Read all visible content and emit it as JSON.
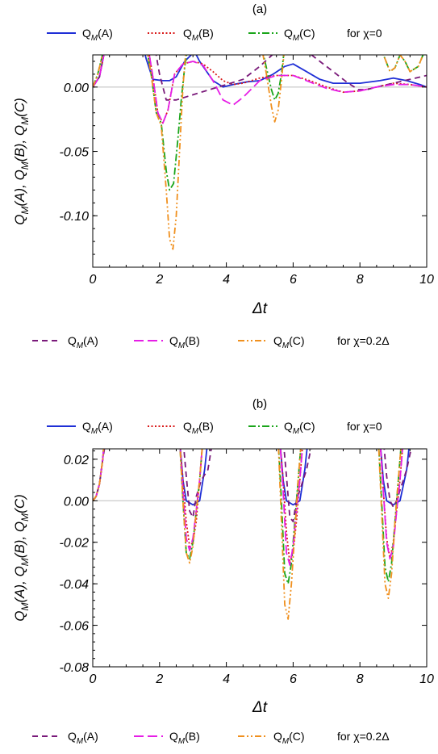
{
  "figure": {
    "legend_top": [
      {
        "label_main": "Q",
        "label_sub": "M",
        "label_tail": "(A)",
        "color": "#1f2fd6",
        "dash": "solid"
      },
      {
        "label_main": "Q",
        "label_sub": "M",
        "label_tail": "(B)",
        "color": "#d91a1a",
        "dash": "dotted"
      },
      {
        "label_main": "Q",
        "label_sub": "M",
        "label_tail": "(C)",
        "color": "#1aa51a",
        "dash": "dashdot"
      }
    ],
    "legend_top_suffix": "for χ=0",
    "legend_bottom": [
      {
        "label_main": "Q",
        "label_sub": "M",
        "label_tail": "(A)",
        "color": "#7a1a7a",
        "dash": "dashed"
      },
      {
        "label_main": "Q",
        "label_sub": "M",
        "label_tail": "(B)",
        "color": "#e61ee6",
        "dash": "longdash"
      },
      {
        "label_main": "Q",
        "label_sub": "M",
        "label_tail": "(C)",
        "color": "#f0901e",
        "dash": "dashdotdot"
      }
    ],
    "legend_bottom_suffix": "for χ=0.2Δ"
  },
  "chart_data": [
    {
      "type": "line",
      "panel_label": "(a)",
      "xlabel": "Δt",
      "ylabel": "Q_M(A), Q_M(B), Q_M(C)",
      "xlim": [
        0,
        10
      ],
      "ylim": [
        -0.14,
        0.025
      ],
      "xticks": [
        0,
        2,
        4,
        6,
        8,
        10
      ],
      "yticks": [
        0.0,
        -0.05,
        -0.1
      ],
      "ytick_labels": [
        "0.00",
        "-0.05",
        "-0.10"
      ],
      "series": [
        {
          "name": "Q_M(A), χ=0",
          "x": [
            0,
            0.2,
            0.33,
            0.4,
            1.5,
            1.6,
            1.8,
            2.1,
            2.3,
            2.5,
            2.75,
            2.95,
            3.0,
            3.2,
            3.6,
            3.9,
            4.2,
            4.6,
            5.0,
            5.4,
            5.75,
            6.0,
            6.4,
            6.8,
            7.2,
            7.6,
            8.0,
            8.6,
            9.0,
            9.4,
            9.8,
            10.0
          ],
          "y": [
            0,
            0.008,
            0.025,
            0.032,
            0.032,
            0.022,
            0.006,
            0.005,
            0.005,
            0.008,
            0.02,
            0.025,
            0.03,
            0.02,
            0.005,
            0.0,
            0.002,
            0.004,
            0.005,
            0.01,
            0.016,
            0.018,
            0.012,
            0.006,
            0.003,
            0.003,
            0.003,
            0.005,
            0.007,
            0.005,
            0.002,
            0.0
          ]
        },
        {
          "name": "Q_M(B), χ=0",
          "x": [
            0,
            0.2,
            0.33,
            0.4,
            1.65,
            1.8,
            1.95,
            2.1,
            2.25,
            2.45,
            2.7,
            3.0,
            3.3,
            3.6,
            3.9,
            4.2,
            4.5,
            5.0,
            5.5,
            6.0,
            6.5,
            7.0,
            7.5,
            8.0,
            8.5,
            9.0,
            9.5,
            10.0
          ],
          "y": [
            0,
            0.008,
            0.025,
            0.032,
            0.032,
            0.008,
            -0.02,
            -0.028,
            -0.018,
            0.01,
            0.018,
            0.02,
            0.018,
            0.012,
            0.005,
            0.002,
            0.003,
            0.007,
            0.009,
            0.009,
            0.005,
            0.0,
            -0.004,
            -0.003,
            0.0,
            0.003,
            0.002,
            0.0
          ]
        },
        {
          "name": "Q_M(C), χ=0",
          "x": [
            0,
            0.15,
            0.3,
            0.38,
            1.6,
            1.75,
            1.9,
            2.05,
            2.2,
            2.3,
            2.42,
            2.55,
            2.65,
            2.75,
            2.85,
            5.05,
            5.2,
            5.35,
            5.45,
            5.55,
            5.65,
            5.75,
            8.6,
            8.75,
            8.9,
            9.05,
            9.2,
            9.35,
            9.5,
            9.75,
            10.0
          ],
          "y": [
            0,
            0.01,
            0.026,
            0.032,
            0.032,
            0.01,
            -0.02,
            -0.028,
            -0.065,
            -0.08,
            -0.075,
            -0.04,
            -0.01,
            0.015,
            0.032,
            0.032,
            0.015,
            -0.002,
            -0.01,
            -0.005,
            0.01,
            0.032,
            0.032,
            0.022,
            0.012,
            0.015,
            0.025,
            0.02,
            0.012,
            0.016,
            0.032
          ]
        },
        {
          "name": "Q_M(A), χ=0.2Δ",
          "x": [
            0,
            0.2,
            0.33,
            0.4,
            1.85,
            2.0,
            2.2,
            2.5,
            3.0,
            3.5,
            4.0,
            4.5,
            5.0,
            5.5,
            5.8,
            6.0,
            6.4,
            6.8,
            7.2,
            7.6,
            7.95,
            8.2,
            8.5,
            9.0,
            9.5,
            10.0
          ],
          "y": [
            0,
            0.008,
            0.025,
            0.032,
            0.032,
            0.01,
            -0.01,
            -0.01,
            -0.006,
            -0.002,
            0.002,
            0.006,
            0.016,
            0.028,
            0.032,
            0.032,
            0.028,
            0.02,
            0.012,
            0.004,
            -0.002,
            -0.002,
            0.0,
            0.003,
            0.006,
            0.009
          ]
        },
        {
          "name": "Q_M(B), χ=0.2Δ",
          "x": [
            0,
            0.2,
            0.33,
            0.4,
            1.65,
            1.8,
            1.95,
            2.1,
            2.25,
            2.45,
            2.7,
            3.0,
            3.3,
            3.6,
            3.9,
            4.2,
            4.5,
            5.0,
            5.5,
            6.0,
            6.5,
            7.0,
            7.5,
            8.0,
            8.5,
            9.0,
            9.5,
            10.0
          ],
          "y": [
            0,
            0.008,
            0.025,
            0.032,
            0.032,
            0.008,
            -0.02,
            -0.028,
            -0.018,
            0.01,
            0.018,
            0.02,
            0.017,
            0.005,
            -0.01,
            -0.014,
            -0.008,
            0.005,
            0.009,
            0.009,
            0.004,
            -0.001,
            -0.004,
            -0.003,
            0.0,
            0.002,
            0.002,
            0.0
          ]
        },
        {
          "name": "Q_M(C), χ=0.2Δ",
          "x": [
            0,
            0.15,
            0.3,
            0.38,
            1.6,
            1.75,
            1.9,
            2.05,
            2.2,
            2.3,
            2.4,
            2.5,
            2.6,
            2.7,
            2.8,
            5.05,
            5.2,
            5.35,
            5.45,
            5.55,
            5.65,
            5.75,
            8.6,
            8.75,
            8.9,
            9.05,
            9.2,
            9.35,
            9.5,
            9.75,
            10.0
          ],
          "y": [
            0,
            0.01,
            0.026,
            0.032,
            0.032,
            0.01,
            -0.02,
            -0.03,
            -0.08,
            -0.118,
            -0.126,
            -0.1,
            -0.05,
            0.0,
            0.032,
            0.032,
            0.01,
            -0.015,
            -0.027,
            -0.018,
            0.005,
            0.032,
            0.032,
            0.022,
            0.012,
            0.015,
            0.025,
            0.02,
            0.012,
            0.016,
            0.032
          ]
        }
      ]
    },
    {
      "type": "line",
      "panel_label": "(b)",
      "xlabel": "Δt",
      "ylabel": "Q_M(A), Q_M(B), Q_M(C)",
      "xlim": [
        0,
        10
      ],
      "ylim": [
        -0.08,
        0.025
      ],
      "xticks": [
        0,
        2,
        4,
        6,
        8,
        10
      ],
      "yticks": [
        0.02,
        0.0,
        -0.02,
        -0.04,
        -0.06,
        -0.08
      ],
      "ytick_labels": [
        "0.02",
        "0.00",
        "-0.02",
        "-0.04",
        "-0.06",
        "-0.08"
      ],
      "series": [
        {
          "name": "Q_M(A), χ=0",
          "x": [
            0,
            0.1,
            0.2,
            0.3,
            0.35,
            2.6,
            2.7,
            2.8,
            3.0,
            3.2,
            3.35,
            3.45,
            5.6,
            5.7,
            5.8,
            6.0,
            6.2,
            6.35,
            6.45,
            8.6,
            8.7,
            8.8,
            9.0,
            9.2,
            9.4,
            9.5
          ],
          "y": [
            0,
            0.002,
            0.008,
            0.02,
            0.03,
            0.03,
            0.01,
            0.0,
            -0.002,
            0.0,
            0.015,
            0.03,
            0.03,
            0.01,
            0.0,
            -0.002,
            0.0,
            0.015,
            0.03,
            0.03,
            0.01,
            0.0,
            -0.002,
            0.0,
            0.015,
            0.03
          ]
        },
        {
          "name": "Q_M(B), χ=0",
          "x": [
            0,
            0.1,
            0.2,
            0.3,
            0.35,
            2.6,
            2.7,
            2.8,
            2.9,
            3.0,
            3.1,
            3.2,
            3.3,
            5.6,
            5.7,
            5.8,
            5.9,
            6.0,
            6.1,
            6.2,
            6.3,
            8.6,
            8.7,
            8.8,
            8.9,
            9.0,
            9.1,
            9.2,
            9.3
          ],
          "y": [
            0,
            0.002,
            0.008,
            0.02,
            0.03,
            0.03,
            0.01,
            -0.01,
            -0.022,
            -0.02,
            -0.01,
            0.01,
            0.03,
            0.03,
            0.01,
            -0.015,
            -0.03,
            -0.025,
            -0.01,
            0.01,
            0.03,
            0.03,
            0.005,
            -0.018,
            -0.028,
            -0.02,
            -0.005,
            0.01,
            0.03
          ]
        },
        {
          "name": "Q_M(C), χ=0",
          "x": [
            0,
            0.1,
            0.2,
            0.3,
            0.35,
            2.6,
            2.7,
            2.8,
            2.9,
            3.0,
            3.1,
            3.2,
            3.3,
            5.55,
            5.65,
            5.75,
            5.85,
            5.95,
            6.05,
            6.15,
            6.25,
            8.55,
            8.65,
            8.75,
            8.85,
            8.95,
            9.05,
            9.15,
            9.25
          ],
          "y": [
            0,
            0.002,
            0.008,
            0.02,
            0.03,
            0.03,
            0.0,
            -0.025,
            -0.028,
            -0.02,
            -0.005,
            0.01,
            0.03,
            0.03,
            0.0,
            -0.035,
            -0.04,
            -0.03,
            -0.01,
            0.01,
            0.03,
            0.03,
            0.0,
            -0.032,
            -0.039,
            -0.03,
            -0.01,
            0.01,
            0.03
          ]
        },
        {
          "name": "Q_M(A), χ=0.2Δ",
          "x": [
            0,
            0.1,
            0.2,
            0.3,
            0.4,
            2.7,
            2.8,
            2.9,
            3.0,
            3.1,
            3.25,
            3.45,
            3.6,
            5.7,
            5.8,
            5.9,
            6.0,
            6.1,
            6.2,
            6.4,
            6.6,
            8.7,
            8.8,
            8.9,
            9.0,
            9.1,
            9.2,
            9.4,
            9.6
          ],
          "y": [
            0,
            0.002,
            0.008,
            0.02,
            0.03,
            0.03,
            0.012,
            -0.005,
            -0.008,
            0.002,
            0.01,
            0.015,
            0.03,
            0.03,
            0.012,
            -0.008,
            -0.01,
            0.0,
            0.005,
            0.015,
            0.03,
            0.03,
            0.012,
            0.0,
            -0.003,
            0.0,
            0.005,
            0.015,
            0.03
          ]
        },
        {
          "name": "Q_M(B), χ=0.2Δ",
          "x": [
            0,
            0.1,
            0.2,
            0.3,
            0.35,
            2.6,
            2.7,
            2.8,
            2.9,
            3.0,
            3.1,
            3.2,
            3.3,
            5.6,
            5.7,
            5.8,
            5.9,
            6.0,
            6.1,
            6.2,
            6.3,
            8.6,
            8.7,
            8.8,
            8.9,
            9.0,
            9.1,
            9.2,
            9.3
          ],
          "y": [
            0,
            0.002,
            0.008,
            0.02,
            0.03,
            0.03,
            0.005,
            -0.018,
            -0.024,
            -0.018,
            -0.005,
            0.01,
            0.03,
            0.03,
            0.005,
            -0.025,
            -0.031,
            -0.022,
            -0.005,
            0.01,
            0.03,
            0.03,
            0.005,
            -0.02,
            -0.028,
            -0.022,
            -0.005,
            0.01,
            0.03
          ]
        },
        {
          "name": "Q_M(C), χ=0.2Δ",
          "x": [
            0,
            0.1,
            0.2,
            0.3,
            0.35,
            2.6,
            2.7,
            2.8,
            2.9,
            3.0,
            3.1,
            3.2,
            3.3,
            5.55,
            5.65,
            5.75,
            5.85,
            5.95,
            6.05,
            6.15,
            6.25,
            8.55,
            8.65,
            8.75,
            8.85,
            8.95,
            9.05,
            9.15,
            9.25
          ],
          "y": [
            0,
            0.002,
            0.008,
            0.02,
            0.03,
            0.03,
            0.0,
            -0.025,
            -0.03,
            -0.022,
            -0.005,
            0.01,
            0.03,
            0.03,
            -0.01,
            -0.05,
            -0.057,
            -0.04,
            -0.015,
            0.01,
            0.03,
            0.03,
            -0.005,
            -0.04,
            -0.047,
            -0.035,
            -0.01,
            0.01,
            0.03
          ]
        }
      ]
    }
  ]
}
